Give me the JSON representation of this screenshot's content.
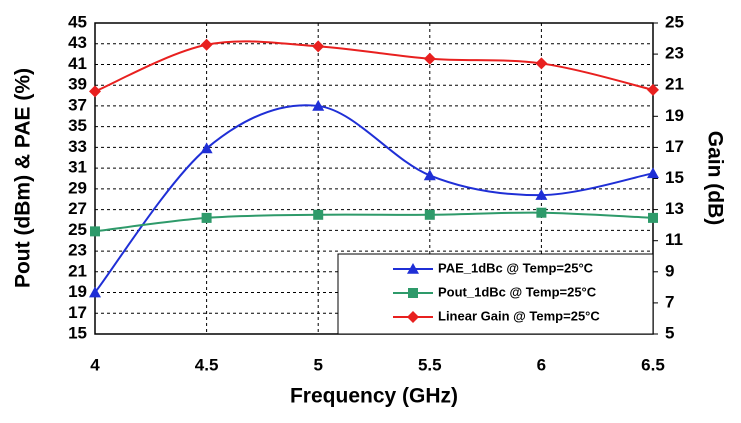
{
  "chart_data": {
    "type": "line",
    "xlabel": "Frequency (GHz)",
    "ylabel": "Pout (dBm) & PAE (%)",
    "y2label": "Gain (dB)",
    "x": [
      4,
      4.5,
      5,
      5.5,
      6,
      6.5
    ],
    "xlim": [
      4,
      6.5
    ],
    "xticks": [
      4,
      4.5,
      5,
      5.5,
      6,
      6.5
    ],
    "ylim": [
      15,
      45
    ],
    "yticks": [
      15,
      17,
      19,
      21,
      23,
      25,
      27,
      29,
      31,
      33,
      35,
      37,
      39,
      41,
      43,
      45
    ],
    "y2lim": [
      5,
      25
    ],
    "y2ticks": [
      5,
      7,
      9,
      11,
      13,
      15,
      17,
      19,
      21,
      23,
      25
    ],
    "grid": true,
    "legend": "lower right",
    "series": [
      {
        "name": "PAE_1dBc @ Temp=25°C",
        "color": "#1f2fd6",
        "marker": "triangle",
        "values": [
          19.0,
          32.9,
          37.0,
          30.3,
          28.4,
          30.5
        ]
      },
      {
        "name": "Pout_1dBc @ Temp=25°C",
        "color": "#2e9a6a",
        "marker": "square",
        "values": [
          24.9,
          26.2,
          26.5,
          26.5,
          26.7,
          26.2
        ]
      },
      {
        "name": "Linear Gain @ Temp=25°C",
        "color": "#e8201f",
        "marker": "diamond",
        "axis": "y2",
        "values": [
          20.6,
          23.6,
          23.5,
          22.7,
          22.4,
          20.7
        ]
      }
    ]
  }
}
